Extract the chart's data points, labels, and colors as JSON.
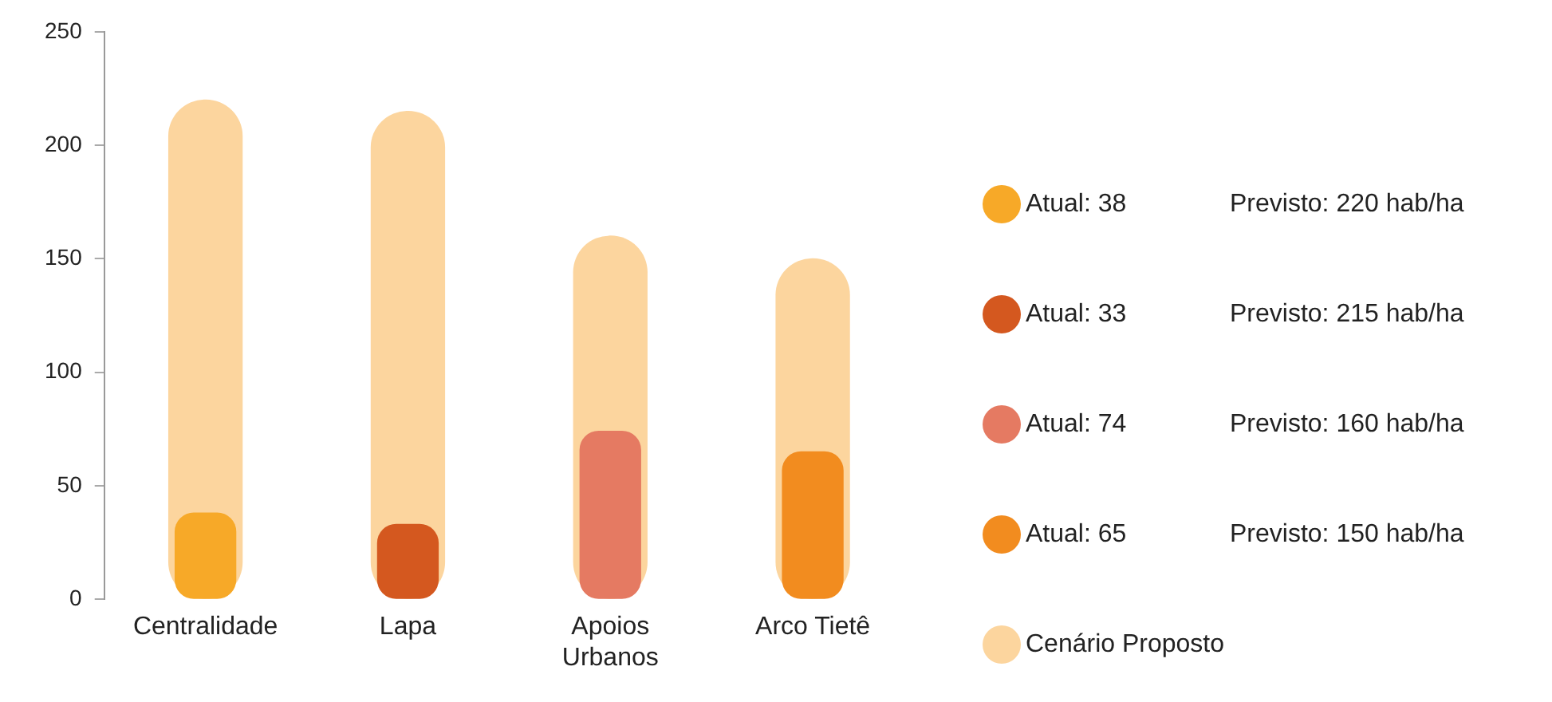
{
  "chart_data": {
    "type": "bar",
    "categories": [
      "Centralidade",
      "Lapa",
      "Apoios Urbanos",
      "Arco Tietê"
    ],
    "series": [
      {
        "name": "Atual: 38",
        "color": "#f7a928",
        "values": [
          38,
          null,
          null,
          null
        ]
      },
      {
        "name": "Atual: 33",
        "color": "#d4581f",
        "values": [
          null,
          33,
          null,
          null
        ]
      },
      {
        "name": "Atual: 74",
        "color": "#e57a62",
        "values": [
          null,
          null,
          74,
          null
        ]
      },
      {
        "name": "Atual: 65",
        "color": "#f28c1f",
        "values": [
          null,
          null,
          null,
          65
        ]
      },
      {
        "name": "Cenário Proposto",
        "color": "#fcd59e",
        "values": [
          220,
          215,
          160,
          150
        ]
      }
    ],
    "annotations": [
      "Previsto: 220 hab/ha",
      "Previsto: 215 hab/ha",
      "Previsto: 160 hab/ha",
      "Previsto: 150 hab/ha"
    ],
    "ylim": [
      0,
      250
    ],
    "yticks": [
      0,
      50,
      100,
      150,
      200,
      250
    ],
    "grid": false,
    "legend": "right"
  }
}
